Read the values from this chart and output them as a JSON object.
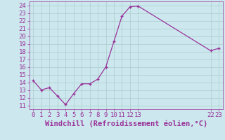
{
  "x": [
    0,
    1,
    2,
    3,
    4,
    5,
    6,
    7,
    8,
    9,
    10,
    11,
    12,
    13,
    22,
    23
  ],
  "y": [
    14.2,
    13.0,
    13.3,
    12.2,
    11.1,
    12.5,
    13.8,
    13.8,
    14.4,
    16.0,
    19.3,
    22.6,
    23.8,
    23.9,
    18.1,
    18.4
  ],
  "line_color": "#993399",
  "marker_color": "#993399",
  "bg_color": "#cce8ee",
  "grid_color": "#aacccc",
  "xlabel": "Windchill (Refroidissement éolien,°C)",
  "xlabel_color": "#993399",
  "xlim": [
    -0.5,
    23.5
  ],
  "ylim": [
    10.5,
    24.5
  ],
  "yticks": [
    11,
    12,
    13,
    14,
    15,
    16,
    17,
    18,
    19,
    20,
    21,
    22,
    23,
    24
  ],
  "xticks": [
    0,
    1,
    2,
    3,
    4,
    5,
    6,
    7,
    8,
    9,
    10,
    11,
    12,
    13,
    22,
    23
  ],
  "tick_color": "#993399",
  "tick_fontsize": 6.5,
  "xlabel_fontsize": 7.5
}
